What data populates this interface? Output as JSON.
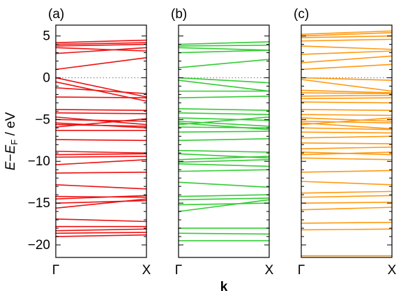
{
  "chart_data": {
    "type": "line",
    "ylim": [
      -21.5,
      6.3
    ],
    "y_ticks": [
      5,
      0,
      -5,
      -10,
      -15,
      -20
    ],
    "y_tick_labels": [
      "5",
      "0",
      "−5",
      "−10",
      "−15",
      "−20"
    ],
    "ylabel": {
      "e": "E",
      "minus": "−",
      "ef": "E",
      "sub": "F",
      "unit": " / eV"
    },
    "xlabel": "k",
    "x_tick_labels": [
      "Γ",
      "X"
    ],
    "reference_line_y": 0,
    "panels": [
      {
        "label": "(a)",
        "color": "#ee1111",
        "bands": [
          [
            4.2,
            4.5
          ],
          [
            4.0,
            4.2
          ],
          [
            3.8,
            4.0
          ],
          [
            3.6,
            3.2
          ],
          [
            2.9,
            3.6
          ],
          [
            1.0,
            2.4
          ],
          [
            0.0,
            -2.3
          ],
          [
            -0.5,
            -2.8
          ],
          [
            -1.2,
            -1.9
          ],
          [
            -2.3,
            -2.4
          ],
          [
            -3.8,
            -3.9
          ],
          [
            -4.2,
            -4.3
          ],
          [
            -4.7,
            -5.6
          ],
          [
            -5.0,
            -5.2
          ],
          [
            -5.4,
            -6.0
          ],
          [
            -5.6,
            -5.8
          ],
          [
            -5.9,
            -4.9
          ],
          [
            -6.3,
            -6.3
          ],
          [
            -7.4,
            -7.5
          ],
          [
            -8.8,
            -9.0
          ],
          [
            -9.2,
            -9.1
          ],
          [
            -9.5,
            -9.4
          ],
          [
            -10.4,
            -9.8
          ],
          [
            -11.4,
            -11.3
          ],
          [
            -12.8,
            -13.3
          ],
          [
            -14.2,
            -14.3
          ],
          [
            -14.5,
            -14.1
          ],
          [
            -15.0,
            -14.7
          ],
          [
            -15.6,
            -14.5
          ],
          [
            -16.9,
            -17.2
          ],
          [
            -17.8,
            -17.8
          ],
          [
            -18.3,
            -18.1
          ],
          [
            -18.6,
            -18.5
          ],
          [
            -19.0,
            -18.8
          ]
        ]
      },
      {
        "label": "(b)",
        "color": "#33cc33",
        "bands": [
          [
            4.0,
            4.3
          ],
          [
            3.8,
            3.9
          ],
          [
            3.6,
            3.3
          ],
          [
            3.0,
            3.3
          ],
          [
            1.2,
            2.2
          ],
          [
            0.0,
            -0.6
          ],
          [
            -0.3,
            -1.6
          ],
          [
            -1.6,
            -1.6
          ],
          [
            -2.4,
            -2.2
          ],
          [
            -3.7,
            -3.9
          ],
          [
            -4.2,
            -4.4
          ],
          [
            -4.8,
            -5.1
          ],
          [
            -5.2,
            -5.8
          ],
          [
            -5.4,
            -6.2
          ],
          [
            -5.6,
            -4.7
          ],
          [
            -5.9,
            -6.0
          ],
          [
            -6.5,
            -6.4
          ],
          [
            -7.5,
            -7.3
          ],
          [
            -8.7,
            -8.9
          ],
          [
            -9.1,
            -9.6
          ],
          [
            -9.8,
            -9.4
          ],
          [
            -10.1,
            -9.8
          ],
          [
            -10.3,
            -10.6
          ],
          [
            -11.2,
            -11.0
          ],
          [
            -12.5,
            -13.1
          ],
          [
            -14.2,
            -14.0
          ],
          [
            -14.6,
            -14.4
          ],
          [
            -15.2,
            -15.0
          ],
          [
            -16.0,
            -14.6
          ],
          [
            -18.0,
            -18.0
          ],
          [
            -18.6,
            -18.7
          ],
          [
            -19.5,
            -19.5
          ]
        ]
      },
      {
        "label": "(c)",
        "color": "#ff9911",
        "bands": [
          [
            5.2,
            5.6
          ],
          [
            5.0,
            5.4
          ],
          [
            4.8,
            5.0
          ],
          [
            4.4,
            4.6
          ],
          [
            3.8,
            3.4
          ],
          [
            2.8,
            3.2
          ],
          [
            1.8,
            2.6
          ],
          [
            1.0,
            1.6
          ],
          [
            0.0,
            -0.3
          ],
          [
            -0.2,
            -1.6
          ],
          [
            -1.5,
            -1.8
          ],
          [
            -1.8,
            -1.9
          ],
          [
            -2.2,
            -2.1
          ],
          [
            -2.5,
            -2.4
          ],
          [
            -2.9,
            -3.0
          ],
          [
            -3.8,
            -3.9
          ],
          [
            -4.4,
            -4.5
          ],
          [
            -4.8,
            -5.2
          ],
          [
            -5.2,
            -5.4
          ],
          [
            -5.4,
            -6.1
          ],
          [
            -5.6,
            -4.8
          ],
          [
            -6.0,
            -6.2
          ],
          [
            -6.5,
            -6.6
          ],
          [
            -7.2,
            -7.0
          ],
          [
            -7.8,
            -7.9
          ],
          [
            -8.5,
            -8.3
          ],
          [
            -8.9,
            -9.2
          ],
          [
            -9.2,
            -8.9
          ],
          [
            -9.6,
            -9.8
          ],
          [
            -11.3,
            -11.1
          ],
          [
            -12.4,
            -12.8
          ],
          [
            -13.8,
            -13.6
          ],
          [
            -14.3,
            -14.1
          ],
          [
            -15.0,
            -14.9
          ],
          [
            -15.8,
            -15.5
          ],
          [
            -17.4,
            -17.3
          ],
          [
            -18.2,
            -18.1
          ],
          [
            -21.3,
            -21.3
          ]
        ]
      }
    ]
  }
}
